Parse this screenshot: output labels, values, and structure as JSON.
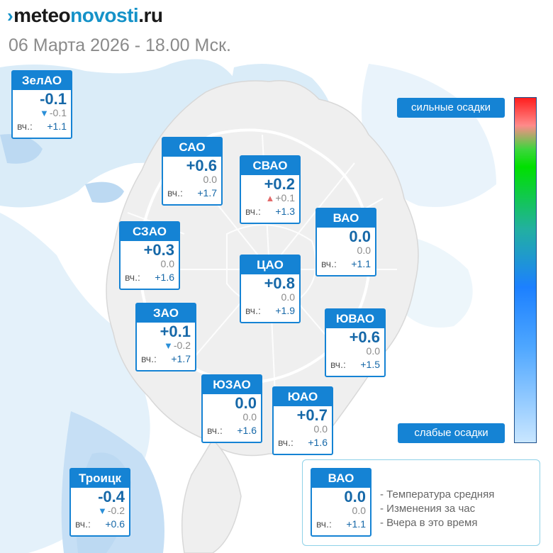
{
  "header": {
    "logo_prefix": "meteo",
    "logo_middle": "novosti",
    "logo_suffix": ".ru",
    "datetime": "06 Марта 2026 - 18.00 Мск."
  },
  "districts": [
    {
      "name": "ЗелАО",
      "temp": "-0.1",
      "trend": "down",
      "change": "-0.1",
      "yesterday_label": "вч.:",
      "yesterday": "+1.1"
    },
    {
      "name": "САО",
      "temp": "+0.6",
      "trend": "none",
      "change": "0.0",
      "yesterday_label": "вч.:",
      "yesterday": "+1.7"
    },
    {
      "name": "СВАО",
      "temp": "+0.2",
      "trend": "up",
      "change": "+0.1",
      "yesterday_label": "вч.:",
      "yesterday": "+1.3"
    },
    {
      "name": "ВАО",
      "temp": "0.0",
      "trend": "none",
      "change": "0.0",
      "yesterday_label": "вч.:",
      "yesterday": "+1.1"
    },
    {
      "name": "СЗАО",
      "temp": "+0.3",
      "trend": "none",
      "change": "0.0",
      "yesterday_label": "вч.:",
      "yesterday": "+1.6"
    },
    {
      "name": "ЦАО",
      "temp": "+0.8",
      "trend": "none",
      "change": "0.0",
      "yesterday_label": "вч.:",
      "yesterday": "+1.9"
    },
    {
      "name": "ЗАО",
      "temp": "+0.1",
      "trend": "down",
      "change": "-0.2",
      "yesterday_label": "вч.:",
      "yesterday": "+1.7"
    },
    {
      "name": "ЮВАО",
      "temp": "+0.6",
      "trend": "none",
      "change": "0.0",
      "yesterday_label": "вч.:",
      "yesterday": "+1.5"
    },
    {
      "name": "ЮЗАО",
      "temp": "0.0",
      "trend": "none",
      "change": "0.0",
      "yesterday_label": "вч.:",
      "yesterday": "+1.6"
    },
    {
      "name": "ЮАО",
      "temp": "+0.7",
      "trend": "none",
      "change": "0.0",
      "yesterday_label": "вч.:",
      "yesterday": "+1.6"
    },
    {
      "name": "Троицк",
      "temp": "-0.4",
      "trend": "down",
      "change": "-0.2",
      "yesterday_label": "вч.:",
      "yesterday": "+0.6"
    }
  ],
  "precip_scale": {
    "top_label": "сильные осадки",
    "bottom_label": "слабые осадки",
    "colors": [
      "#ff1e1e",
      "#ff8a8a",
      "#00e000",
      "#1c80ff",
      "#c9e6ff"
    ]
  },
  "key": {
    "sample": {
      "name": "ВАО",
      "temp": "0.0",
      "change": "0.0",
      "yesterday_label": "вч.:",
      "yesterday": "+1.1"
    },
    "lines": [
      "- Температура средняя",
      "- Изменения за час",
      "- Вчера в это время"
    ]
  },
  "colors": {
    "accent": "#1583d4",
    "temp_text": "#1668a8",
    "precip_light": "#d9ebf8"
  },
  "icons": {
    "trend_down": "down-triangle-icon",
    "trend_up": "up-triangle-icon"
  }
}
